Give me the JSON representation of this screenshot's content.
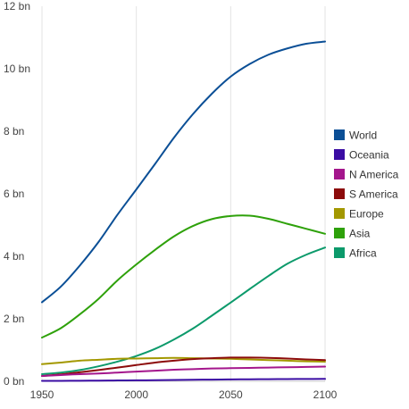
{
  "chart_data": {
    "type": "line",
    "xlim": [
      1950,
      2100
    ],
    "ylim": [
      0,
      12
    ],
    "x_ticks": [
      1950,
      2000,
      2050,
      2100
    ],
    "x_tick_labels": [
      "1950",
      "2000",
      "2050",
      "2100"
    ],
    "y_ticks": [
      0,
      2,
      4,
      6,
      8,
      10,
      12
    ],
    "y_tick_labels": [
      "0 bn",
      "2 bn",
      "4 bn",
      "6 bn",
      "8 bn",
      "10 bn",
      "12 bn"
    ],
    "grid": "vertical",
    "legend_position": "right",
    "x": [
      1950,
      1960,
      1970,
      1980,
      1990,
      2000,
      2010,
      2020,
      2030,
      2040,
      2050,
      2060,
      2070,
      2080,
      2090,
      2100
    ],
    "series": [
      {
        "name": "World",
        "color": "#0b4f96",
        "values": [
          2.53,
          3.03,
          3.7,
          4.46,
          5.33,
          6.14,
          6.96,
          7.8,
          8.55,
          9.2,
          9.75,
          10.15,
          10.45,
          10.65,
          10.8,
          10.87
        ]
      },
      {
        "name": "Oceania",
        "color": "#3a0ca3",
        "values": [
          0.013,
          0.016,
          0.019,
          0.023,
          0.027,
          0.031,
          0.037,
          0.043,
          0.049,
          0.055,
          0.06,
          0.065,
          0.069,
          0.072,
          0.075,
          0.077
        ]
      },
      {
        "name": "N America",
        "color": "#a4168c",
        "values": [
          0.17,
          0.2,
          0.23,
          0.25,
          0.28,
          0.31,
          0.34,
          0.37,
          0.39,
          0.41,
          0.42,
          0.43,
          0.44,
          0.45,
          0.46,
          0.47
        ]
      },
      {
        "name": "S America",
        "color": "#8c0b0b",
        "values": [
          0.17,
          0.22,
          0.29,
          0.36,
          0.44,
          0.52,
          0.6,
          0.66,
          0.71,
          0.74,
          0.76,
          0.76,
          0.75,
          0.73,
          0.7,
          0.68
        ]
      },
      {
        "name": "Europe",
        "color": "#a39800",
        "values": [
          0.55,
          0.6,
          0.66,
          0.69,
          0.72,
          0.73,
          0.74,
          0.75,
          0.74,
          0.73,
          0.72,
          0.7,
          0.68,
          0.66,
          0.64,
          0.63
        ]
      },
      {
        "name": "Asia",
        "color": "#2ea10a",
        "values": [
          1.4,
          1.7,
          2.14,
          2.64,
          3.23,
          3.74,
          4.21,
          4.64,
          4.97,
          5.19,
          5.29,
          5.3,
          5.2,
          5.04,
          4.88,
          4.72
        ]
      },
      {
        "name": "Africa",
        "color": "#0c9a6b",
        "values": [
          0.23,
          0.28,
          0.36,
          0.48,
          0.63,
          0.81,
          1.04,
          1.34,
          1.69,
          2.1,
          2.52,
          2.95,
          3.37,
          3.76,
          4.05,
          4.28
        ]
      }
    ]
  }
}
